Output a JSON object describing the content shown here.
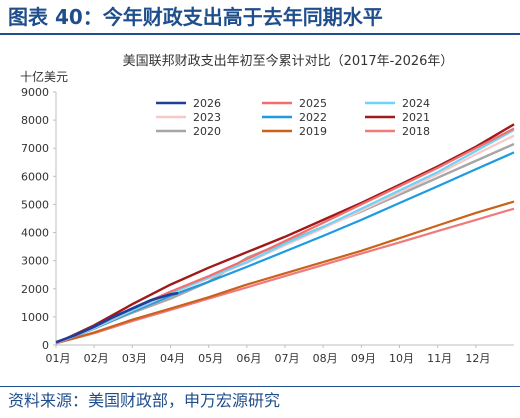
{
  "figure_title": "图表 40：今年财政支出高于去年同期水平",
  "source_note": "资料来源：美国财政部，申万宏源研究",
  "colors": {
    "header": "#1f4e8c",
    "axis": "#bfbfbf",
    "text": "#333333"
  },
  "chart_data": {
    "type": "line",
    "title": "美国联邦财政支出年初至今累计对比（2017年-2026年）",
    "ylabel": "十亿美元",
    "xlabel": "",
    "ylim": [
      0,
      9000
    ],
    "yticks": [
      "0",
      "1000",
      "2000",
      "3000",
      "4000",
      "5000",
      "6000",
      "7000",
      "8000",
      "9000"
    ],
    "xticks": [
      "01月",
      "02月",
      "03月",
      "04月",
      "05月",
      "06月",
      "07月",
      "08月",
      "09月",
      "10月",
      "11月",
      "12月"
    ],
    "grid": false,
    "legend_position": "top-left, inside plot, 3 columns",
    "series": [
      {
        "name": "2026",
        "color": "#1f3e9a",
        "width": 2.6,
        "x": [
          0,
          0.5,
          1,
          1.5,
          2,
          2.5,
          3,
          3.2
        ],
        "y": [
          100,
          350,
          650,
          1000,
          1300,
          1600,
          1800,
          1850
        ]
      },
      {
        "name": "2025",
        "color": "#f26f6f",
        "width": 2.2,
        "x": [
          0,
          1,
          2,
          3,
          4,
          5,
          6,
          7,
          8,
          9,
          10,
          11,
          12
        ],
        "y": [
          60,
          650,
          1300,
          1900,
          2450,
          3050,
          3700,
          4350,
          5000,
          5650,
          6300,
          7000,
          7700
        ]
      },
      {
        "name": "2024",
        "color": "#6fd3f5",
        "width": 2.2,
        "x": [
          0,
          1,
          2,
          3,
          4,
          5,
          6,
          7,
          8,
          9,
          10,
          11,
          12
        ],
        "y": [
          60,
          620,
          1250,
          1850,
          2400,
          2950,
          3600,
          4200,
          4850,
          5500,
          6150,
          6900,
          7650
        ]
      },
      {
        "name": "2023",
        "color": "#f7c8c8",
        "width": 2.2,
        "x": [
          0,
          1,
          2,
          3,
          4,
          5,
          6,
          7,
          8,
          9,
          10,
          11,
          12
        ],
        "y": [
          60,
          600,
          1230,
          1820,
          2370,
          2920,
          3550,
          4150,
          4780,
          5420,
          6080,
          6780,
          7450
        ]
      },
      {
        "name": "2022",
        "color": "#1e9be0",
        "width": 2.2,
        "x": [
          0,
          1,
          2,
          3,
          4,
          5,
          6,
          7,
          8,
          9,
          10,
          11,
          12
        ],
        "y": [
          60,
          580,
          1180,
          1750,
          2250,
          2780,
          3330,
          3880,
          4450,
          5050,
          5650,
          6250,
          6850
        ]
      },
      {
        "name": "2021",
        "color": "#a01a1a",
        "width": 2.4,
        "x": [
          0,
          1,
          2,
          3,
          4,
          5,
          6,
          7,
          8,
          9,
          10,
          11,
          12
        ],
        "y": [
          60,
          700,
          1450,
          2150,
          2750,
          3300,
          3850,
          4450,
          5050,
          5700,
          6350,
          7050,
          7850
        ]
      },
      {
        "name": "2020",
        "color": "#a6a6a6",
        "width": 2.4,
        "x": [
          0,
          1,
          2,
          3,
          4,
          5,
          6,
          7,
          8,
          9,
          10,
          11,
          12
        ],
        "y": [
          60,
          600,
          1150,
          1650,
          2250,
          3100,
          3650,
          4200,
          4750,
          5350,
          5950,
          6550,
          7150
        ]
      },
      {
        "name": "2019",
        "color": "#c9621a",
        "width": 2.2,
        "x": [
          0,
          1,
          2,
          3,
          4,
          5,
          6,
          7,
          8,
          9,
          10,
          11,
          12
        ],
        "y": [
          60,
          450,
          900,
          1300,
          1700,
          2150,
          2550,
          2950,
          3350,
          3800,
          4250,
          4700,
          5100
        ]
      },
      {
        "name": "2018",
        "color": "#f07a7a",
        "width": 2.2,
        "x": [
          0,
          1,
          2,
          3,
          4,
          5,
          6,
          7,
          8,
          9,
          10,
          11,
          12
        ],
        "y": [
          60,
          420,
          850,
          1250,
          1650,
          2050,
          2450,
          2850,
          3250,
          3650,
          4050,
          4450,
          4850
        ]
      }
    ]
  }
}
